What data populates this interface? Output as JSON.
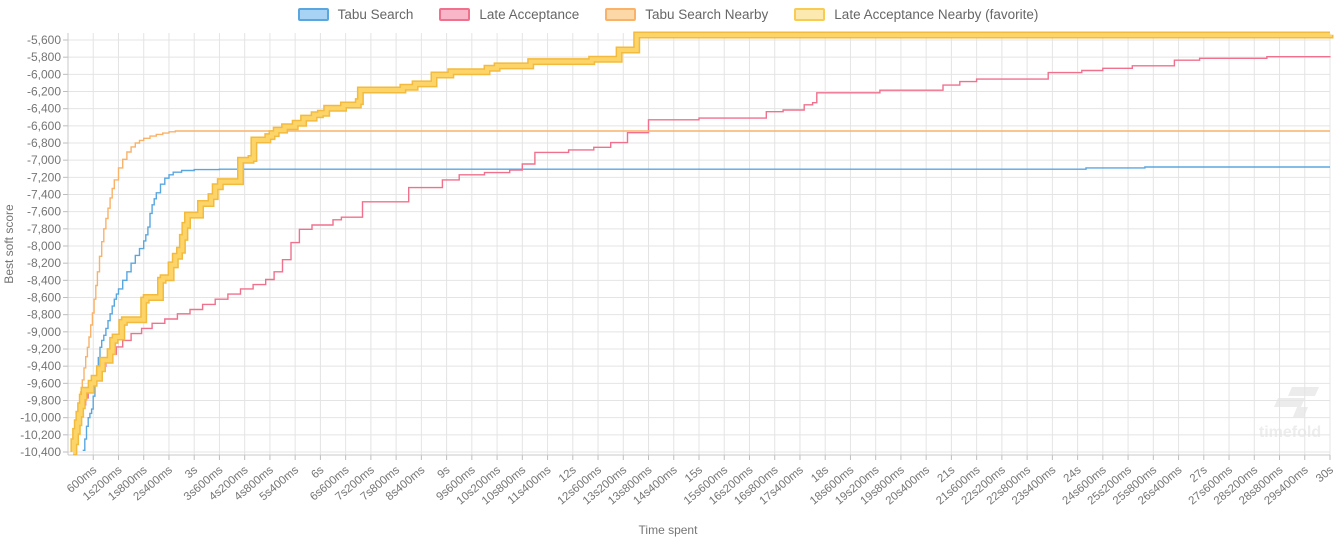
{
  "watermark": {
    "text": "timefold"
  },
  "chart_data": {
    "type": "line",
    "title": "",
    "xlabel": "Time spent",
    "ylabel": "Best soft score",
    "x_unit": "seconds",
    "xlim": [
      0,
      30
    ],
    "ylim": [
      -10400,
      -5500
    ],
    "grid": true,
    "legend_position": "top",
    "step_interpolation": true,
    "y_ticks": [
      [
        -5600,
        "-5,600"
      ],
      [
        -5800,
        "-5,800"
      ],
      [
        -6000,
        "-6,000"
      ],
      [
        -6200,
        "-6,200"
      ],
      [
        -6400,
        "-6,400"
      ],
      [
        -6600,
        "-6,600"
      ],
      [
        -6800,
        "-6,800"
      ],
      [
        -7000,
        "-7,000"
      ],
      [
        -7200,
        "-7,200"
      ],
      [
        -7400,
        "-7,400"
      ],
      [
        -7600,
        "-7,600"
      ],
      [
        -7800,
        "-7,800"
      ],
      [
        -8000,
        "-8,000"
      ],
      [
        -8200,
        "-8,200"
      ],
      [
        -8400,
        "-8,400"
      ],
      [
        -8600,
        "-8,600"
      ],
      [
        -8800,
        "-8,800"
      ],
      [
        -9000,
        "-9,000"
      ],
      [
        -9200,
        "-9,200"
      ],
      [
        -9400,
        "-9,400"
      ],
      [
        -9600,
        "-9,600"
      ],
      [
        -9800,
        "-9,800"
      ],
      [
        -10000,
        "-10,000"
      ],
      [
        -10200,
        "-10,200"
      ],
      [
        -10400,
        "-10,400"
      ]
    ],
    "x_ticks": [
      [
        0.6,
        "600ms"
      ],
      [
        1.2,
        "1s200ms"
      ],
      [
        1.8,
        "1s800ms"
      ],
      [
        2.4,
        "2s400ms"
      ],
      [
        3,
        "3s"
      ],
      [
        3.6,
        "3s600ms"
      ],
      [
        4.2,
        "4s200ms"
      ],
      [
        4.8,
        "4s800ms"
      ],
      [
        5.4,
        "5s400ms"
      ],
      [
        6,
        "6s"
      ],
      [
        6.6,
        "6s600ms"
      ],
      [
        7.2,
        "7s200ms"
      ],
      [
        7.8,
        "7s800ms"
      ],
      [
        8.4,
        "8s400ms"
      ],
      [
        9,
        "9s"
      ],
      [
        9.6,
        "9s600ms"
      ],
      [
        10.2,
        "10s200ms"
      ],
      [
        10.8,
        "10s800ms"
      ],
      [
        11.4,
        "11s400ms"
      ],
      [
        12,
        "12s"
      ],
      [
        12.6,
        "12s600ms"
      ],
      [
        13.2,
        "13s200ms"
      ],
      [
        13.8,
        "13s800ms"
      ],
      [
        14.4,
        "14s400ms"
      ],
      [
        15,
        "15s"
      ],
      [
        15.6,
        "15s600ms"
      ],
      [
        16.2,
        "16s200ms"
      ],
      [
        16.8,
        "16s800ms"
      ],
      [
        17.4,
        "17s400ms"
      ],
      [
        18,
        "18s"
      ],
      [
        18.6,
        "18s600ms"
      ],
      [
        19.2,
        "19s200ms"
      ],
      [
        19.8,
        "19s800ms"
      ],
      [
        20.4,
        "20s400ms"
      ],
      [
        21,
        "21s"
      ],
      [
        21.6,
        "21s600ms"
      ],
      [
        22.2,
        "22s200ms"
      ],
      [
        22.8,
        "22s800ms"
      ],
      [
        23.4,
        "23s400ms"
      ],
      [
        24,
        "24s"
      ],
      [
        24.6,
        "24s600ms"
      ],
      [
        25.2,
        "25s200ms"
      ],
      [
        25.8,
        "25s800ms"
      ],
      [
        26.4,
        "26s400ms"
      ],
      [
        27,
        "27s"
      ],
      [
        27.6,
        "27s600ms"
      ],
      [
        28.2,
        "28s200ms"
      ],
      [
        28.8,
        "28s800ms"
      ],
      [
        29.4,
        "29s400ms"
      ],
      [
        30,
        "30s"
      ]
    ],
    "series": [
      {
        "id": "tabu-search",
        "name": "Tabu Search",
        "color": "#5aa7e0",
        "legend_fill": "#a9d3f5",
        "width": 1.4,
        "emphasis": false,
        "points": [
          [
            0.35,
            -10380
          ],
          [
            0.4,
            -10250
          ],
          [
            0.44,
            -10100
          ],
          [
            0.48,
            -10000
          ],
          [
            0.52,
            -9950
          ],
          [
            0.56,
            -9900
          ],
          [
            0.6,
            -9750
          ],
          [
            0.64,
            -9600
          ],
          [
            0.68,
            -9450
          ],
          [
            0.72,
            -9300
          ],
          [
            0.76,
            -9180
          ],
          [
            0.8,
            -9100
          ],
          [
            0.85,
            -9040
          ],
          [
            0.9,
            -8960
          ],
          [
            0.95,
            -8870
          ],
          [
            1.0,
            -8790
          ],
          [
            1.05,
            -8700
          ],
          [
            1.1,
            -8620
          ],
          [
            1.15,
            -8560
          ],
          [
            1.2,
            -8500
          ],
          [
            1.3,
            -8400
          ],
          [
            1.4,
            -8300
          ],
          [
            1.5,
            -8200
          ],
          [
            1.6,
            -8110
          ],
          [
            1.7,
            -8030
          ],
          [
            1.8,
            -7940
          ],
          [
            1.85,
            -7870
          ],
          [
            1.9,
            -7780
          ],
          [
            1.95,
            -7620
          ],
          [
            2.0,
            -7520
          ],
          [
            2.05,
            -7450
          ],
          [
            2.1,
            -7380
          ],
          [
            2.2,
            -7280
          ],
          [
            2.3,
            -7210
          ],
          [
            2.4,
            -7170
          ],
          [
            2.5,
            -7140
          ],
          [
            2.7,
            -7120
          ],
          [
            3.0,
            -7110
          ],
          [
            3.6,
            -7105
          ],
          [
            24.2,
            -7090
          ],
          [
            25.6,
            -7080
          ],
          [
            30,
            -7080
          ]
        ]
      },
      {
        "id": "late-acceptance",
        "name": "Late Acceptance",
        "color": "#f0718d",
        "legend_fill": "#f8b6c8",
        "width": 1.4,
        "emphasis": false,
        "points": [
          [
            0.12,
            -10350
          ],
          [
            0.16,
            -10240
          ],
          [
            0.2,
            -10130
          ],
          [
            0.25,
            -10030
          ],
          [
            0.3,
            -9940
          ],
          [
            0.36,
            -9850
          ],
          [
            0.42,
            -9770
          ],
          [
            0.48,
            -9700
          ],
          [
            0.54,
            -9630
          ],
          [
            0.6,
            -9560
          ],
          [
            0.7,
            -9480
          ],
          [
            0.8,
            -9400
          ],
          [
            0.9,
            -9330
          ],
          [
            1.0,
            -9260
          ],
          [
            1.15,
            -9175
          ],
          [
            1.3,
            -9100
          ],
          [
            1.5,
            -9020
          ],
          [
            1.75,
            -8960
          ],
          [
            2.0,
            -8900
          ],
          [
            2.3,
            -8850
          ],
          [
            2.6,
            -8790
          ],
          [
            2.9,
            -8740
          ],
          [
            3.2,
            -8680
          ],
          [
            3.5,
            -8620
          ],
          [
            3.8,
            -8560
          ],
          [
            4.1,
            -8500
          ],
          [
            4.4,
            -8450
          ],
          [
            4.7,
            -8390
          ],
          [
            4.9,
            -8300
          ],
          [
            5.1,
            -8160
          ],
          [
            5.3,
            -7960
          ],
          [
            5.5,
            -7805
          ],
          [
            5.8,
            -7755
          ],
          [
            6.3,
            -7695
          ],
          [
            6.5,
            -7665
          ],
          [
            7.0,
            -7485
          ],
          [
            8.1,
            -7320
          ],
          [
            8.9,
            -7230
          ],
          [
            9.3,
            -7170
          ],
          [
            9.9,
            -7145
          ],
          [
            10.5,
            -7115
          ],
          [
            10.8,
            -7045
          ],
          [
            11.1,
            -6910
          ],
          [
            11.9,
            -6880
          ],
          [
            12.5,
            -6850
          ],
          [
            12.9,
            -6795
          ],
          [
            13.3,
            -6680
          ],
          [
            13.8,
            -6530
          ],
          [
            15.0,
            -6510
          ],
          [
            16.6,
            -6435
          ],
          [
            17.0,
            -6415
          ],
          [
            17.5,
            -6355
          ],
          [
            17.7,
            -6330
          ],
          [
            17.8,
            -6215
          ],
          [
            19.3,
            -6185
          ],
          [
            20.8,
            -6125
          ],
          [
            21.2,
            -6085
          ],
          [
            21.6,
            -6055
          ],
          [
            23.3,
            -5980
          ],
          [
            24.1,
            -5955
          ],
          [
            24.6,
            -5930
          ],
          [
            25.3,
            -5900
          ],
          [
            26.3,
            -5835
          ],
          [
            26.9,
            -5813
          ],
          [
            28.5,
            -5795
          ],
          [
            30,
            -5790
          ]
        ]
      },
      {
        "id": "tabu-search-nearby",
        "name": "Tabu Search Nearby",
        "color": "#f9b269",
        "legend_fill": "#fbd8a5",
        "width": 1.4,
        "emphasis": false,
        "points": [
          [
            0.12,
            -10400
          ],
          [
            0.14,
            -10270
          ],
          [
            0.18,
            -10130
          ],
          [
            0.22,
            -9990
          ],
          [
            0.26,
            -9850
          ],
          [
            0.3,
            -9700
          ],
          [
            0.34,
            -9560
          ],
          [
            0.38,
            -9420
          ],
          [
            0.42,
            -9290
          ],
          [
            0.46,
            -9180
          ],
          [
            0.5,
            -9060
          ],
          [
            0.54,
            -8920
          ],
          [
            0.58,
            -8780
          ],
          [
            0.62,
            -8620
          ],
          [
            0.66,
            -8460
          ],
          [
            0.7,
            -8300
          ],
          [
            0.75,
            -8120
          ],
          [
            0.8,
            -7950
          ],
          [
            0.85,
            -7800
          ],
          [
            0.9,
            -7680
          ],
          [
            0.95,
            -7560
          ],
          [
            1.0,
            -7440
          ],
          [
            1.05,
            -7330
          ],
          [
            1.1,
            -7230
          ],
          [
            1.2,
            -7090
          ],
          [
            1.3,
            -6990
          ],
          [
            1.4,
            -6905
          ],
          [
            1.5,
            -6845
          ],
          [
            1.6,
            -6800
          ],
          [
            1.7,
            -6770
          ],
          [
            1.8,
            -6745
          ],
          [
            1.95,
            -6720
          ],
          [
            2.1,
            -6700
          ],
          [
            2.25,
            -6685
          ],
          [
            2.4,
            -6670
          ],
          [
            2.55,
            -6660
          ],
          [
            30,
            -6660
          ]
        ]
      },
      {
        "id": "late-acceptance-nearby",
        "name": "Late Acceptance Nearby (favorite)",
        "color": "#f8cb52",
        "legend_fill": "#fbe9af",
        "width": 6,
        "emphasis": true,
        "points": [
          [
            0.12,
            -10400
          ],
          [
            0.14,
            -10280
          ],
          [
            0.18,
            -10160
          ],
          [
            0.22,
            -10060
          ],
          [
            0.26,
            -9960
          ],
          [
            0.3,
            -9860
          ],
          [
            0.34,
            -9760
          ],
          [
            0.38,
            -9680
          ],
          [
            0.55,
            -9600
          ],
          [
            0.62,
            -9540
          ],
          [
            0.75,
            -9430
          ],
          [
            0.82,
            -9330
          ],
          [
            1.0,
            -9230
          ],
          [
            1.06,
            -9100
          ],
          [
            1.12,
            -9060
          ],
          [
            1.28,
            -8890
          ],
          [
            1.34,
            -8860
          ],
          [
            1.8,
            -8630
          ],
          [
            1.86,
            -8600
          ],
          [
            2.2,
            -8400
          ],
          [
            2.26,
            -8370
          ],
          [
            2.45,
            -8220
          ],
          [
            2.55,
            -8120
          ],
          [
            2.65,
            -8050
          ],
          [
            2.72,
            -7900
          ],
          [
            2.78,
            -7760
          ],
          [
            2.84,
            -7640
          ],
          [
            3.15,
            -7505
          ],
          [
            3.4,
            -7425
          ],
          [
            3.5,
            -7310
          ],
          [
            3.62,
            -7250
          ],
          [
            4.1,
            -7000
          ],
          [
            4.35,
            -6980
          ],
          [
            4.42,
            -6765
          ],
          [
            4.75,
            -6725
          ],
          [
            4.85,
            -6690
          ],
          [
            4.95,
            -6650
          ],
          [
            5.15,
            -6610
          ],
          [
            5.4,
            -6570
          ],
          [
            5.6,
            -6510
          ],
          [
            5.85,
            -6470
          ],
          [
            6.0,
            -6454
          ],
          [
            6.15,
            -6396
          ],
          [
            6.55,
            -6357
          ],
          [
            6.9,
            -6318
          ],
          [
            6.95,
            -6182
          ],
          [
            7.96,
            -6151
          ],
          [
            8.25,
            -6112
          ],
          [
            8.7,
            -6008
          ],
          [
            9.1,
            -5969
          ],
          [
            9.96,
            -5929
          ],
          [
            10.2,
            -5902
          ],
          [
            11.0,
            -5852
          ],
          [
            12.45,
            -5825
          ],
          [
            13.1,
            -5717
          ],
          [
            13.52,
            -5542
          ],
          [
            30,
            -5540
          ]
        ]
      }
    ]
  }
}
